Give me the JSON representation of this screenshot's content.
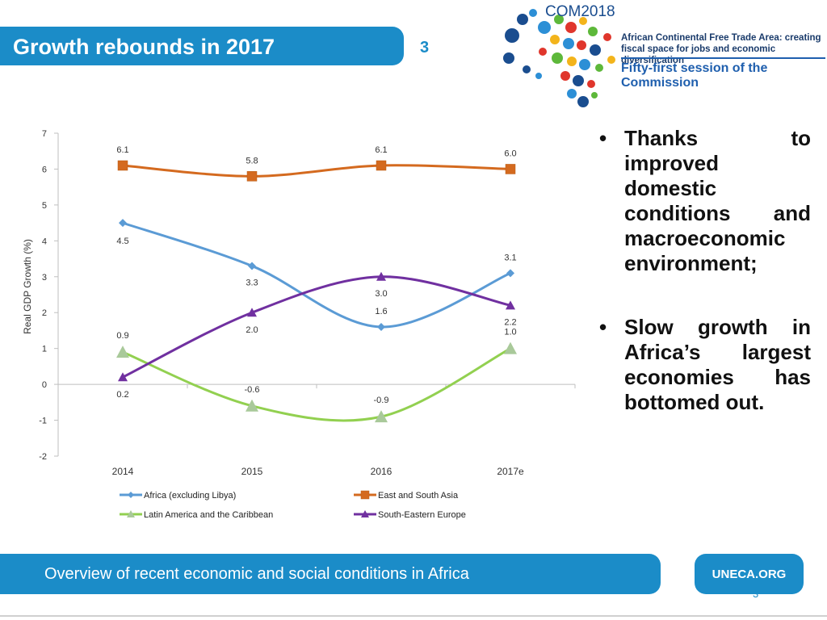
{
  "slide": {
    "title": "Growth rebounds in 2017",
    "number": "3"
  },
  "logo": {
    "com": "COM",
    "year": "2018",
    "subtitle": "African Continental Free Trade Area: creating fiscal space for jobs and economic diversification",
    "session": "Fifty-first session of the Commission",
    "colors": [
      "#1a4d8f",
      "#2c8fd6",
      "#e0362c",
      "#f3b41b",
      "#5db83a"
    ]
  },
  "bullets": [
    {
      "symbol": "•",
      "text": "Thanks to improved domestic conditions and macroeconomic environment;"
    },
    {
      "symbol": "•",
      "text": "Slow growth in Africa’s largest economies has bottomed out."
    }
  ],
  "footer": {
    "text": "Overview of recent economic and social conditions in Africa",
    "badge": "UNECA.ORG",
    "page": "3"
  },
  "chart_data": {
    "type": "line",
    "categories": [
      "2014",
      "2015",
      "2016",
      "2017e"
    ],
    "ylabel": "Real GDP Growth (%)",
    "ylim": [
      -2,
      7
    ],
    "yticks": [
      "7",
      "6",
      "5",
      "4",
      "3",
      "2",
      "1",
      "0",
      "-1",
      "-2"
    ],
    "grid": false,
    "legend_position": "bottom",
    "series": [
      {
        "name": "Africa (excluding Libya)",
        "values": [
          4.5,
          3.3,
          1.6,
          3.1
        ],
        "labels": [
          "4.5",
          "3.3",
          "1.6",
          "3.1"
        ],
        "color": "#5b9bd5",
        "marker": "diamond"
      },
      {
        "name": "East and South Asia",
        "values": [
          6.1,
          5.8,
          6.1,
          6.0
        ],
        "labels": [
          "6.1",
          "5.8",
          "6.1",
          "6.0"
        ],
        "color": "#d46a1f",
        "marker": "square"
      },
      {
        "name": "Latin America and the Caribbean",
        "values": [
          0.9,
          -0.6,
          -0.9,
          1.0
        ],
        "labels": [
          "0.9",
          "-0.6",
          "-0.9",
          "1.0"
        ],
        "color": "#92d050",
        "marker": "triangle"
      },
      {
        "name": "South-Eastern Europe",
        "values": [
          0.2,
          2.0,
          3.0,
          2.2
        ],
        "labels": [
          "0.2",
          "2.0",
          "3.0",
          "2.2"
        ],
        "color": "#7030a0",
        "marker": "triangle"
      }
    ]
  }
}
